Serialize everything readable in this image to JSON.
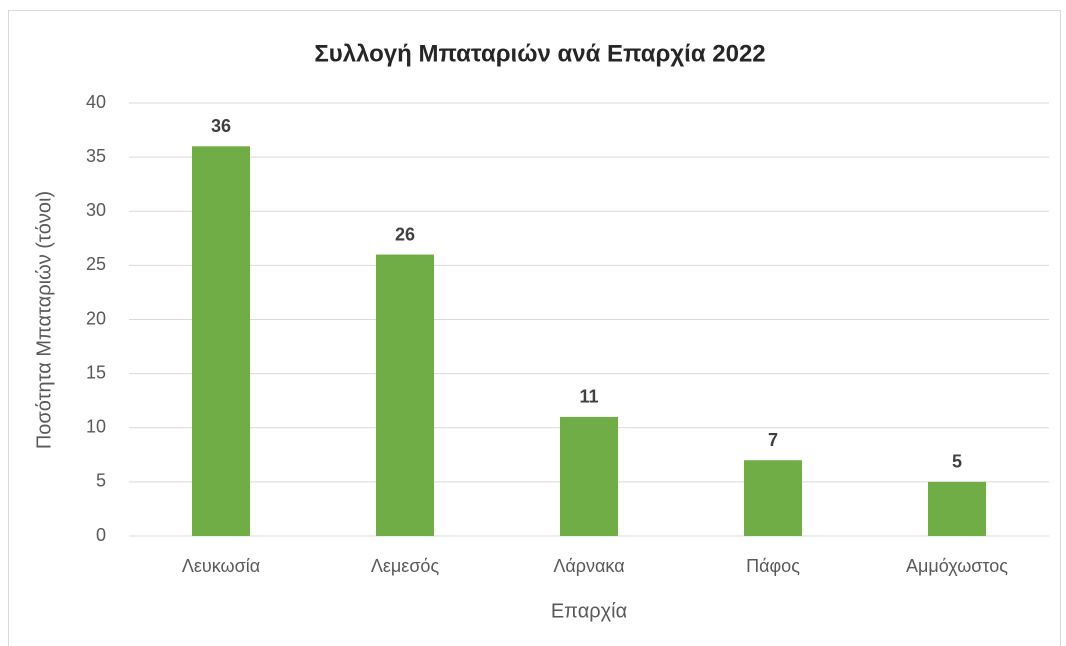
{
  "chart_data": {
    "type": "bar",
    "title": "Συλλογή Μπαταριών ανά Επαρχία 2022",
    "x_label": "Επαρχία",
    "y_label": "Ποσότητα Μπαταριών (τόνοι)",
    "categories": [
      "Λευκωσία",
      "Λεμεσός",
      "Λάρνακα",
      "Πάφος",
      "Αμμόχωστος"
    ],
    "values": [
      36,
      26,
      11,
      7,
      5
    ],
    "color": "#70ad47",
    "ylim": [
      0,
      40
    ],
    "yticks": [
      0,
      5,
      10,
      15,
      20,
      25,
      30,
      35,
      40
    ],
    "grid": true
  }
}
